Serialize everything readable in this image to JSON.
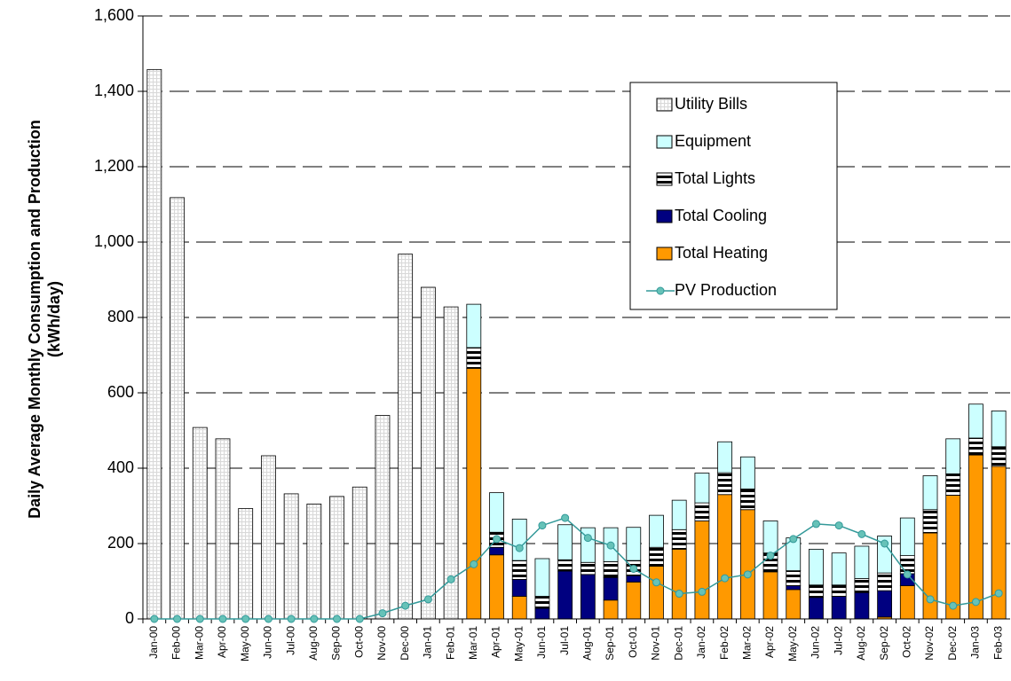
{
  "chart_data": {
    "type": "bar",
    "y_label": [
      "Daily Average Monthly Consumption and Production",
      "(kWh/day)"
    ],
    "categories": [
      "Jan-00",
      "Feb-00",
      "Mar-00",
      "Apr-00",
      "May-00",
      "Jun-00",
      "Jul-00",
      "Aug-00",
      "Sep-00",
      "Oct-00",
      "Nov-00",
      "Dec-00",
      "Jan-01",
      "Feb-01",
      "Mar-01",
      "Apr-01",
      "May-01",
      "Jun-01",
      "Jul-01",
      "Aug-01",
      "Sep-01",
      "Oct-01",
      "Nov-01",
      "Dec-01",
      "Jan-02",
      "Feb-02",
      "Mar-02",
      "Apr-02",
      "May-02",
      "Jun-02",
      "Jul-02",
      "Aug-02",
      "Sep-02",
      "Oct-02",
      "Nov-02",
      "Dec-02",
      "Jan-03",
      "Feb-03"
    ],
    "ylim": [
      0,
      1600
    ],
    "yticks": [
      0,
      200,
      400,
      600,
      800,
      {
        "value": 1000,
        "label": "1,000"
      },
      {
        "value": 1200,
        "label": "1,200"
      },
      {
        "value": 1400,
        "label": "1,400"
      },
      {
        "value": 1600,
        "label": "1,600"
      }
    ],
    "grid": true,
    "legend_position": "right",
    "series": [
      {
        "name": "Utility Bills",
        "color": "#d9d9d9",
        "pattern": "grid",
        "stack": "utility",
        "values": [
          1458,
          1118,
          508,
          478,
          293,
          433,
          332,
          305,
          325,
          350,
          540,
          968,
          880,
          828,
          null,
          null,
          null,
          null,
          null,
          null,
          null,
          null,
          null,
          null,
          null,
          null,
          null,
          null,
          null,
          null,
          null,
          null,
          null,
          null,
          null,
          null,
          null,
          null
        ]
      },
      {
        "name": "Equipment",
        "color": "#ccffff",
        "stack": "model",
        "values": [
          null,
          null,
          null,
          null,
          null,
          null,
          null,
          null,
          null,
          null,
          null,
          null,
          null,
          null,
          115,
          105,
          110,
          100,
          93,
          92,
          90,
          88,
          85,
          78,
          79,
          82,
          85,
          85,
          87,
          95,
          85,
          86,
          98,
          100,
          90,
          93,
          90,
          95
        ]
      },
      {
        "name": "Total Lights",
        "color": "#000000",
        "pattern": "stripes",
        "stack": "model",
        "values": [
          null,
          null,
          null,
          null,
          null,
          null,
          null,
          null,
          null,
          null,
          null,
          null,
          null,
          null,
          55,
          40,
          50,
          32,
          30,
          32,
          42,
          40,
          50,
          52,
          48,
          58,
          55,
          50,
          40,
          33,
          30,
          37,
          47,
          48,
          62,
          57,
          45,
          52
        ]
      },
      {
        "name": "Total Cooling",
        "color": "#000080",
        "stack": "model",
        "values": [
          null,
          null,
          null,
          null,
          null,
          null,
          null,
          null,
          null,
          null,
          null,
          null,
          null,
          null,
          0,
          20,
          45,
          28,
          127,
          118,
          60,
          17,
          0,
          0,
          0,
          0,
          0,
          0,
          10,
          57,
          60,
          70,
          70,
          32,
          0,
          0,
          0,
          0
        ]
      },
      {
        "name": "Total Heating",
        "color": "#ff9900",
        "stack": "model",
        "values": [
          null,
          null,
          null,
          null,
          null,
          null,
          null,
          null,
          null,
          null,
          null,
          null,
          null,
          null,
          665,
          170,
          60,
          0,
          0,
          0,
          50,
          98,
          140,
          185,
          260,
          330,
          290,
          125,
          78,
          0,
          0,
          0,
          5,
          88,
          228,
          328,
          435,
          405
        ]
      },
      {
        "name": "PV Production",
        "color": "#339999",
        "type": "line",
        "values": [
          0,
          0,
          0,
          0,
          0,
          0,
          0,
          0,
          0,
          0,
          15,
          35,
          52,
          105,
          145,
          212,
          188,
          248,
          268,
          215,
          195,
          133,
          97,
          67,
          72,
          108,
          118,
          168,
          212,
          252,
          248,
          225,
          200,
          118,
          52,
          35,
          45,
          68
        ]
      }
    ]
  }
}
